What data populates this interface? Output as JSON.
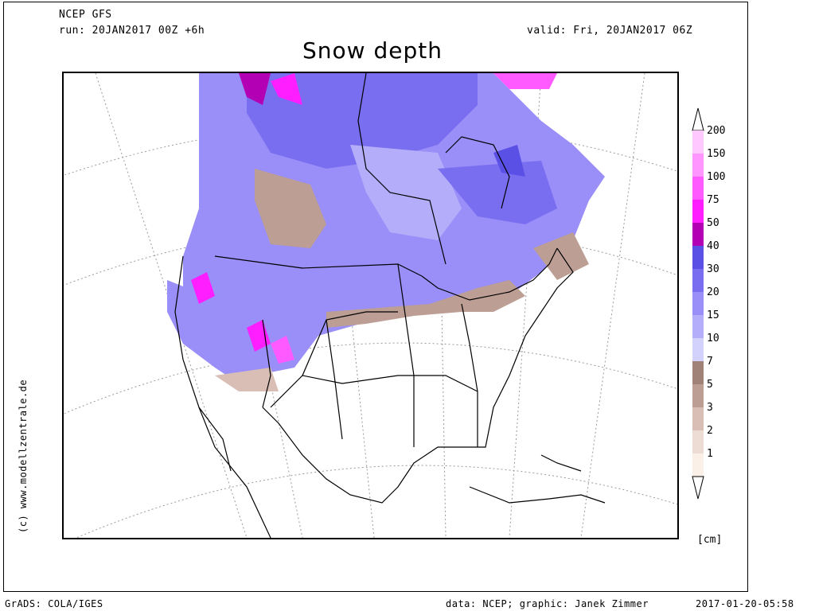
{
  "header": {
    "model": "NCEP GFS",
    "run": "run: 20JAN2017 00Z +6h",
    "valid": "valid: Fri, 20JAN2017 06Z",
    "title": "Snow depth"
  },
  "credit_vertical": "(c) www.modellzentrale.de",
  "footer": {
    "left": "GrADS: COLA/IGES",
    "center": "data: NCEP; graphic: Janek Zimmer",
    "right": "2017-01-20-05:58"
  },
  "legend": {
    "unit": "[cm]",
    "levels": [
      {
        "label": "200",
        "color": "#ffc8ff"
      },
      {
        "label": "150",
        "color": "#ff96ff"
      },
      {
        "label": "100",
        "color": "#ff5aff"
      },
      {
        "label": "75",
        "color": "#ff1eff"
      },
      {
        "label": "50",
        "color": "#b400b4"
      },
      {
        "label": "40",
        "color": "#5a50e6"
      },
      {
        "label": "30",
        "color": "#7a6ef0"
      },
      {
        "label": "20",
        "color": "#9a8ef8"
      },
      {
        "label": "15",
        "color": "#b4aefa"
      },
      {
        "label": "10",
        "color": "#d2d2fc"
      },
      {
        "label": "7",
        "color": "#a08278"
      },
      {
        "label": "5",
        "color": "#bc9e94"
      },
      {
        "label": "3",
        "color": "#d8beb4"
      },
      {
        "label": "2",
        "color": "#ecdcd4"
      },
      {
        "label": "1",
        "color": "#fbf0e8"
      }
    ]
  }
}
